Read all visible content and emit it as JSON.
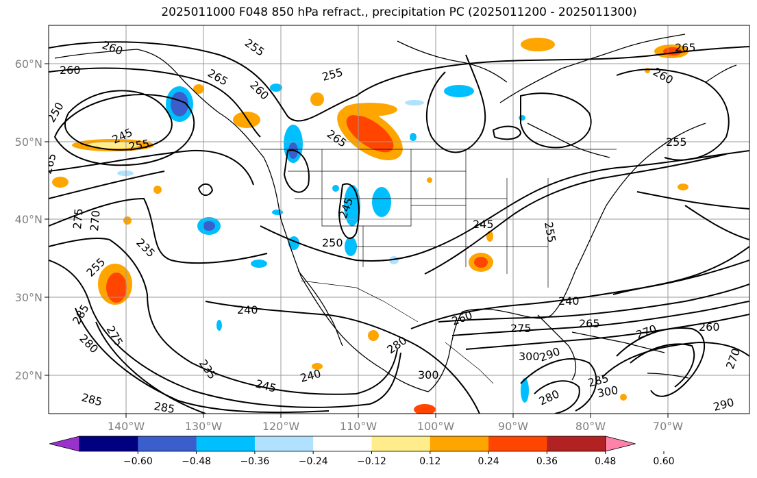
{
  "title": "2025011000 F048 850 hPa refract., precipitation PC (2025011200 - 2025011300)",
  "lat_labels": [
    "60°N",
    "50°N",
    "40°N",
    "30°N",
    "20°N"
  ],
  "lon_labels": [
    "140°W",
    "130°W",
    "120°W",
    "110°W",
    "100°W",
    "90°W",
    "80°W",
    "70°W"
  ],
  "colorbar": {
    "ticks": [
      "−0.60",
      "−0.48",
      "−0.36",
      "−0.24",
      "−0.12",
      "0.12",
      "0.24",
      "0.36",
      "0.48",
      "0.60"
    ],
    "colors": [
      "#9932cc",
      "#000080",
      "#3a5fcd",
      "#00bfff",
      "#b0e2ff",
      "#ffffff",
      "#ffec8b",
      "#ffa500",
      "#ff4500",
      "#b22222",
      "#ff82ab"
    ]
  },
  "contour_labels": [
    "260",
    "255",
    "265",
    "260",
    "250",
    "245",
    "255",
    "265",
    "255",
    "260",
    "265",
    "255",
    "260",
    "265",
    "275",
    "270",
    "235",
    "255",
    "245",
    "250",
    "245",
    "255",
    "240",
    "285",
    "280",
    "275",
    "235",
    "245",
    "240",
    "300",
    "280",
    "285",
    "285",
    "260",
    "275",
    "240",
    "265",
    "300",
    "290",
    "280",
    "285",
    "300",
    "270",
    "260",
    "270",
    "290"
  ]
}
